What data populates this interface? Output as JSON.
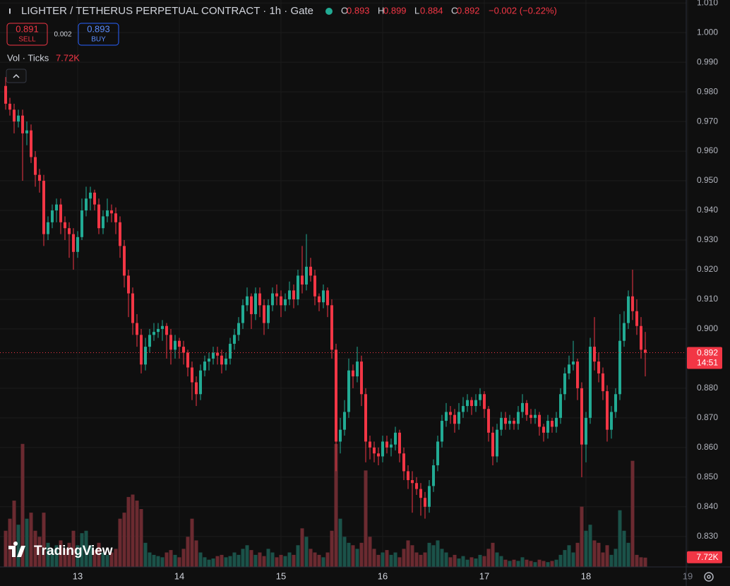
{
  "chart_data": {
    "type": "candlestick",
    "title": "LIGHTER / TETHERUS PERPETUAL CONTRACT · 1h · Gate",
    "ohlc_legend": [
      {
        "label": "O",
        "value": 0.893
      },
      {
        "label": "H",
        "value": 0.899
      },
      {
        "label": "L",
        "value": 0.884
      },
      {
        "label": "C",
        "value": 0.892
      }
    ],
    "change": "−0.002 (−0.22%)",
    "sell": {
      "price": 0.891,
      "label": "SELL"
    },
    "spread": 0.002,
    "buy": {
      "price": 0.893,
      "label": "BUY"
    },
    "last_price": 0.892,
    "countdown": "14:51",
    "watermark": "TradingView",
    "up_color": "#22ab94",
    "down_color": "#f23645",
    "volume_up_color": "#1b5249",
    "volume_down_color": "#6b2a30",
    "grid": true,
    "xlim": [
      -1.333,
      160.667
    ],
    "xticks": [
      {
        "value": 17,
        "label": "13"
      },
      {
        "value": 41,
        "label": "14"
      },
      {
        "value": 65,
        "label": "15"
      },
      {
        "value": 89,
        "label": "16"
      },
      {
        "value": 113,
        "label": "17"
      },
      {
        "value": 137,
        "label": "18"
      },
      {
        "value": 161,
        "label": "19"
      }
    ],
    "ylim": [
      0.8197,
      1.011
    ],
    "yticks": [
      {
        "value": 0.83,
        "label": "0.830"
      },
      {
        "value": 0.84,
        "label": "0.840"
      },
      {
        "value": 0.85,
        "label": "0.850"
      },
      {
        "value": 0.86,
        "label": "0.860"
      },
      {
        "value": 0.87,
        "label": "0.870"
      },
      {
        "value": 0.88,
        "label": "0.880"
      },
      {
        "value": 0.89,
        "label": "0.890"
      },
      {
        "value": 0.9,
        "label": "0.900"
      },
      {
        "value": 0.91,
        "label": "0.910"
      },
      {
        "value": 0.92,
        "label": "0.920"
      },
      {
        "value": 0.93,
        "label": "0.930"
      },
      {
        "value": 0.94,
        "label": "0.940"
      },
      {
        "value": 0.95,
        "label": "0.950"
      },
      {
        "value": 0.96,
        "label": "0.960"
      },
      {
        "value": 0.97,
        "label": "0.970"
      },
      {
        "value": 0.98,
        "label": "0.980"
      },
      {
        "value": 0.99,
        "label": "0.990"
      },
      {
        "value": 1,
        "label": "1.000"
      },
      {
        "value": 1.01,
        "label": "1.010"
      }
    ],
    "ohlc": [
      [
        0.982,
        0.985,
        0.974,
        0.976
      ],
      [
        0.976,
        0.978,
        0.972,
        0.974
      ],
      [
        0.974,
        0.976,
        0.966,
        0.97
      ],
      [
        0.97,
        0.974,
        0.968,
        0.972
      ],
      [
        0.972,
        0.974,
        0.95,
        0.966
      ],
      [
        0.966,
        0.97,
        0.962,
        0.967
      ],
      [
        0.967,
        0.969,
        0.956,
        0.958
      ],
      [
        0.958,
        0.96,
        0.948,
        0.952
      ],
      [
        0.952,
        0.954,
        0.946,
        0.95
      ],
      [
        0.95,
        0.952,
        0.928,
        0.932
      ],
      [
        0.932,
        0.938,
        0.93,
        0.936
      ],
      [
        0.936,
        0.942,
        0.934,
        0.94
      ],
      [
        0.94,
        0.944,
        0.936,
        0.942
      ],
      [
        0.942,
        0.944,
        0.932,
        0.936
      ],
      [
        0.936,
        0.938,
        0.93,
        0.934
      ],
      [
        0.934,
        0.936,
        0.924,
        0.932
      ],
      [
        0.932,
        0.934,
        0.92,
        0.926
      ],
      [
        0.926,
        0.933,
        0.924,
        0.931
      ],
      [
        0.931,
        0.944,
        0.93,
        0.94
      ],
      [
        0.94,
        0.948,
        0.938,
        0.944
      ],
      [
        0.944,
        0.948,
        0.94,
        0.946
      ],
      [
        0.946,
        0.947,
        0.94,
        0.942
      ],
      [
        0.942,
        0.944,
        0.932,
        0.934
      ],
      [
        0.934,
        0.94,
        0.932,
        0.938
      ],
      [
        0.938,
        0.944,
        0.936,
        0.94
      ],
      [
        0.94,
        0.942,
        0.936,
        0.939
      ],
      [
        0.939,
        0.941,
        0.932,
        0.936
      ],
      [
        0.936,
        0.938,
        0.924,
        0.928
      ],
      [
        0.928,
        0.93,
        0.914,
        0.918
      ],
      [
        0.918,
        0.92,
        0.904,
        0.912
      ],
      [
        0.912,
        0.914,
        0.898,
        0.902
      ],
      [
        0.902,
        0.905,
        0.894,
        0.898
      ],
      [
        0.898,
        0.9,
        0.885,
        0.888
      ],
      [
        0.888,
        0.897,
        0.886,
        0.894
      ],
      [
        0.894,
        0.9,
        0.892,
        0.898
      ],
      [
        0.898,
        0.902,
        0.896,
        0.899
      ],
      [
        0.899,
        0.902,
        0.897,
        0.9
      ],
      [
        0.9,
        0.903,
        0.896,
        0.901
      ],
      [
        0.901,
        0.902,
        0.89,
        0.898
      ],
      [
        0.898,
        0.9,
        0.888,
        0.893
      ],
      [
        0.893,
        0.898,
        0.89,
        0.896
      ],
      [
        0.896,
        0.897,
        0.89,
        0.894
      ],
      [
        0.894,
        0.896,
        0.888,
        0.892
      ],
      [
        0.892,
        0.893,
        0.884,
        0.887
      ],
      [
        0.887,
        0.889,
        0.876,
        0.882
      ],
      [
        0.882,
        0.884,
        0.874,
        0.878
      ],
      [
        0.878,
        0.888,
        0.876,
        0.886
      ],
      [
        0.886,
        0.891,
        0.884,
        0.889
      ],
      [
        0.889,
        0.892,
        0.886,
        0.89
      ],
      [
        0.89,
        0.894,
        0.888,
        0.892
      ],
      [
        0.892,
        0.894,
        0.888,
        0.891
      ],
      [
        0.891,
        0.893,
        0.885,
        0.888
      ],
      [
        0.888,
        0.892,
        0.886,
        0.89
      ],
      [
        0.89,
        0.897,
        0.888,
        0.895
      ],
      [
        0.895,
        0.9,
        0.893,
        0.898
      ],
      [
        0.898,
        0.904,
        0.896,
        0.902
      ],
      [
        0.902,
        0.91,
        0.9,
        0.908
      ],
      [
        0.908,
        0.914,
        0.906,
        0.911
      ],
      [
        0.911,
        0.912,
        0.9,
        0.905
      ],
      [
        0.905,
        0.914,
        0.903,
        0.912
      ],
      [
        0.912,
        0.914,
        0.904,
        0.908
      ],
      [
        0.908,
        0.91,
        0.898,
        0.902
      ],
      [
        0.902,
        0.91,
        0.9,
        0.908
      ],
      [
        0.908,
        0.914,
        0.906,
        0.912
      ],
      [
        0.912,
        0.915,
        0.908,
        0.911
      ],
      [
        0.911,
        0.913,
        0.904,
        0.908
      ],
      [
        0.908,
        0.912,
        0.906,
        0.91
      ],
      [
        0.91,
        0.916,
        0.908,
        0.913
      ],
      [
        0.913,
        0.915,
        0.907,
        0.91
      ],
      [
        0.91,
        0.92,
        0.908,
        0.918
      ],
      [
        0.918,
        0.928,
        0.912,
        0.915
      ],
      [
        0.915,
        0.932,
        0.913,
        0.921
      ],
      [
        0.921,
        0.924,
        0.916,
        0.918
      ],
      [
        0.918,
        0.92,
        0.908,
        0.911
      ],
      [
        0.911,
        0.912,
        0.906,
        0.909
      ],
      [
        0.909,
        0.915,
        0.907,
        0.913
      ],
      [
        0.913,
        0.914,
        0.904,
        0.908
      ],
      [
        0.908,
        0.91,
        0.89,
        0.893
      ],
      [
        0.893,
        0.895,
        0.852,
        0.862
      ],
      [
        0.862,
        0.87,
        0.858,
        0.866
      ],
      [
        0.866,
        0.876,
        0.864,
        0.872
      ],
      [
        0.872,
        0.89,
        0.87,
        0.886
      ],
      [
        0.886,
        0.888,
        0.88,
        0.884
      ],
      [
        0.884,
        0.894,
        0.882,
        0.889
      ],
      [
        0.889,
        0.891,
        0.874,
        0.878
      ],
      [
        0.878,
        0.88,
        0.855,
        0.862
      ],
      [
        0.862,
        0.864,
        0.856,
        0.86
      ],
      [
        0.86,
        0.862,
        0.855,
        0.858
      ],
      [
        0.858,
        0.86,
        0.854,
        0.857
      ],
      [
        0.857,
        0.864,
        0.855,
        0.862
      ],
      [
        0.862,
        0.864,
        0.858,
        0.86
      ],
      [
        0.86,
        0.863,
        0.857,
        0.861
      ],
      [
        0.861,
        0.867,
        0.859,
        0.865
      ],
      [
        0.865,
        0.866,
        0.855,
        0.858
      ],
      [
        0.858,
        0.86,
        0.849,
        0.852
      ],
      [
        0.852,
        0.854,
        0.846,
        0.849
      ],
      [
        0.849,
        0.852,
        0.838,
        0.848
      ],
      [
        0.848,
        0.85,
        0.844,
        0.846
      ],
      [
        0.846,
        0.848,
        0.837,
        0.843
      ],
      [
        0.843,
        0.845,
        0.836,
        0.84
      ],
      [
        0.84,
        0.849,
        0.838,
        0.847
      ],
      [
        0.847,
        0.856,
        0.845,
        0.854
      ],
      [
        0.854,
        0.864,
        0.852,
        0.862
      ],
      [
        0.862,
        0.871,
        0.86,
        0.869
      ],
      [
        0.869,
        0.875,
        0.867,
        0.872
      ],
      [
        0.872,
        0.874,
        0.868,
        0.871
      ],
      [
        0.871,
        0.873,
        0.865,
        0.868
      ],
      [
        0.868,
        0.875,
        0.866,
        0.872
      ],
      [
        0.872,
        0.877,
        0.87,
        0.874
      ],
      [
        0.874,
        0.878,
        0.872,
        0.876
      ],
      [
        0.876,
        0.877,
        0.871,
        0.874
      ],
      [
        0.874,
        0.878,
        0.872,
        0.876
      ],
      [
        0.876,
        0.88,
        0.874,
        0.878
      ],
      [
        0.878,
        0.879,
        0.87,
        0.873
      ],
      [
        0.873,
        0.874,
        0.862,
        0.865
      ],
      [
        0.865,
        0.867,
        0.854,
        0.857
      ],
      [
        0.857,
        0.868,
        0.855,
        0.866
      ],
      [
        0.866,
        0.872,
        0.864,
        0.87
      ],
      [
        0.87,
        0.872,
        0.866,
        0.868
      ],
      [
        0.868,
        0.871,
        0.866,
        0.869
      ],
      [
        0.869,
        0.87,
        0.866,
        0.868
      ],
      [
        0.868,
        0.874,
        0.866,
        0.872
      ],
      [
        0.872,
        0.878,
        0.87,
        0.875
      ],
      [
        0.875,
        0.876,
        0.869,
        0.871
      ],
      [
        0.871,
        0.873,
        0.868,
        0.87
      ],
      [
        0.87,
        0.873,
        0.868,
        0.871
      ],
      [
        0.871,
        0.872,
        0.864,
        0.867
      ],
      [
        0.867,
        0.868,
        0.862,
        0.865
      ],
      [
        0.865,
        0.871,
        0.863,
        0.869
      ],
      [
        0.869,
        0.87,
        0.865,
        0.867
      ],
      [
        0.867,
        0.872,
        0.865,
        0.87
      ],
      [
        0.87,
        0.88,
        0.868,
        0.878
      ],
      [
        0.878,
        0.887,
        0.876,
        0.885
      ],
      [
        0.885,
        0.891,
        0.883,
        0.888
      ],
      [
        0.888,
        0.896,
        0.886,
        0.889
      ],
      [
        0.889,
        0.89,
        0.876,
        0.88
      ],
      [
        0.88,
        0.882,
        0.85,
        0.861
      ],
      [
        0.861,
        0.872,
        0.855,
        0.87
      ],
      [
        0.87,
        0.897,
        0.868,
        0.894
      ],
      [
        0.894,
        0.904,
        0.886,
        0.889
      ],
      [
        0.889,
        0.892,
        0.882,
        0.885
      ],
      [
        0.885,
        0.887,
        0.876,
        0.879
      ],
      [
        0.879,
        0.881,
        0.862,
        0.866
      ],
      [
        0.866,
        0.874,
        0.863,
        0.872
      ],
      [
        0.872,
        0.88,
        0.87,
        0.878
      ],
      [
        0.878,
        0.905,
        0.876,
        0.896
      ],
      [
        0.896,
        0.906,
        0.894,
        0.902
      ],
      [
        0.902,
        0.913,
        0.9,
        0.911
      ],
      [
        0.911,
        0.92,
        0.903,
        0.906
      ],
      [
        0.906,
        0.91,
        0.898,
        0.901
      ],
      [
        0.901,
        0.904,
        0.89,
        0.893
      ],
      [
        0.893,
        0.899,
        0.884,
        0.892
      ]
    ],
    "volume": {
      "name": "Vol · Ticks",
      "last_value_label": "7.72K",
      "ylim": [
        0,
        120000
      ],
      "values": [
        30000,
        40000,
        55000,
        35000,
        102000,
        40000,
        45000,
        30000,
        25000,
        45000,
        20000,
        15000,
        18000,
        22000,
        15000,
        20000,
        30000,
        18000,
        28000,
        30000,
        18000,
        14000,
        20000,
        12000,
        10000,
        12000,
        15000,
        40000,
        45000,
        58000,
        60000,
        55000,
        48000,
        20000,
        12000,
        10000,
        9000,
        8000,
        12000,
        14000,
        10000,
        8000,
        15000,
        25000,
        40000,
        22000,
        12000,
        8000,
        6000,
        7000,
        9000,
        10000,
        8000,
        9000,
        12000,
        10000,
        15000,
        18000,
        14000,
        10000,
        12000,
        9000,
        15000,
        12000,
        8000,
        10000,
        9000,
        12000,
        10000,
        18000,
        32000,
        25000,
        15000,
        12000,
        10000,
        8000,
        12000,
        30000,
        102000,
        40000,
        25000,
        20000,
        18000,
        15000,
        20000,
        80000,
        25000,
        15000,
        10000,
        12000,
        14000,
        10000,
        12000,
        8000,
        15000,
        22000,
        18000,
        12000,
        10000,
        12000,
        20000,
        18000,
        22000,
        15000,
        12000,
        8000,
        10000,
        7000,
        9000,
        6000,
        8000,
        7000,
        10000,
        9000,
        15000,
        20000,
        12000,
        9000,
        6000,
        5000,
        6000,
        5000,
        8000,
        6000,
        5000,
        4000,
        6000,
        5000,
        4000,
        5000,
        6000,
        10000,
        14000,
        18000,
        12000,
        20000,
        50000,
        30000,
        35000,
        22000,
        20000,
        12000,
        18000,
        10000,
        15000,
        47000,
        30000,
        20000,
        88000,
        10000,
        8000,
        7720
      ]
    }
  }
}
